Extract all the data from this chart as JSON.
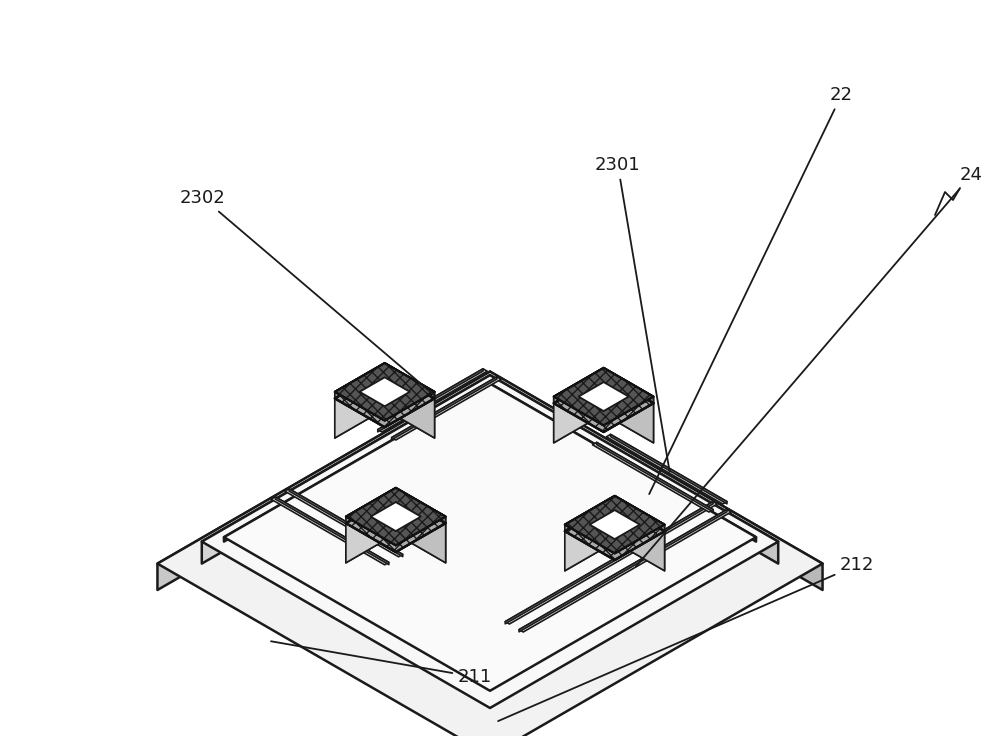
{
  "bg_color": "#ffffff",
  "line_color": "#1a1a1a",
  "label_color": "#1a1a1a",
  "label_fontsize": 13,
  "figsize": [
    10.0,
    7.36
  ],
  "colors": {
    "slab_top": "#f2f2f2",
    "slab_left": "#c8c8c8",
    "slab_right": "#b8b8b8",
    "slab2_top": "#f8f8f8",
    "slab2_left": "#d5d5d5",
    "slab2_right": "#c5c5c5",
    "mem_top": "#fafafa",
    "ped_top": "#eeeeee",
    "ped_left": "#d0d0d0",
    "ped_right": "#c0c0c0",
    "frame_hatch": "#aaaaaa",
    "arm_top": "#f0f0f0",
    "arm_side": "#d8d8d8",
    "white": "#ffffff",
    "dark": "#222222"
  }
}
